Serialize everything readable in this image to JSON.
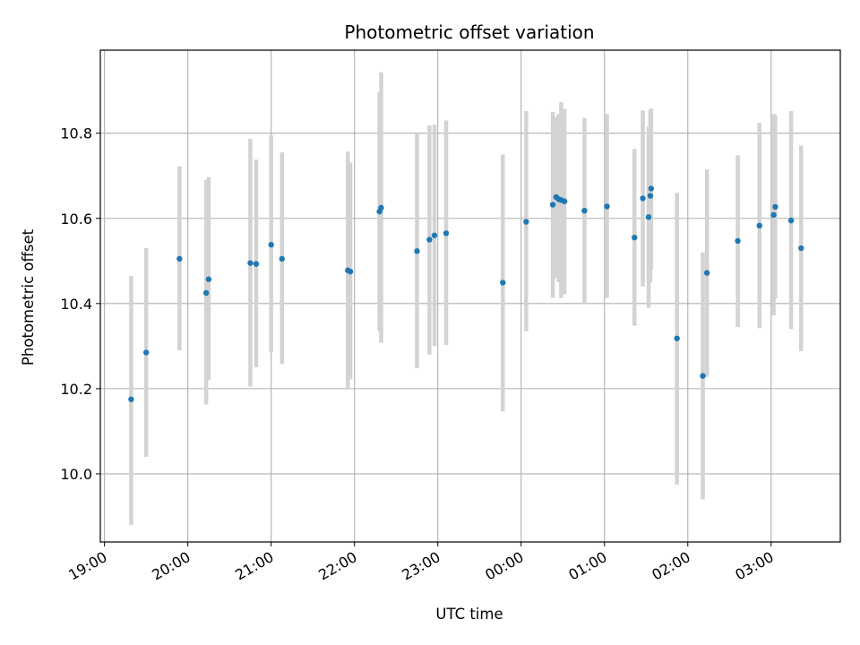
{
  "chart_data": {
    "type": "scatter",
    "title": "Photometric offset variation",
    "xlabel": "UTC time",
    "ylabel": "Photometric offset",
    "x_unit": "hours",
    "xlim": [
      -0.05,
      8.83
    ],
    "ylim": [
      9.84,
      10.995
    ],
    "x_ticks": [
      {
        "value": 0,
        "label": "19:00"
      },
      {
        "value": 1,
        "label": "20:00"
      },
      {
        "value": 2,
        "label": "21:00"
      },
      {
        "value": 3,
        "label": "22:00"
      },
      {
        "value": 4,
        "label": "23:00"
      },
      {
        "value": 5,
        "label": "00:00"
      },
      {
        "value": 6,
        "label": "01:00"
      },
      {
        "value": 7,
        "label": "02:00"
      },
      {
        "value": 8,
        "label": "03:00"
      }
    ],
    "y_ticks": [
      {
        "value": 10.0,
        "label": "10.0"
      },
      {
        "value": 10.2,
        "label": "10.2"
      },
      {
        "value": 10.4,
        "label": "10.4"
      },
      {
        "value": 10.6,
        "label": "10.6"
      },
      {
        "value": 10.8,
        "label": "10.8"
      }
    ],
    "grid": true,
    "point_color": "#1f77b4",
    "errorbar_color": "#d3d3d3",
    "points": [
      {
        "x": 0.32,
        "y": 10.175,
        "lo": 9.88,
        "hi": 10.465
      },
      {
        "x": 0.5,
        "y": 10.285,
        "lo": 10.04,
        "hi": 10.53
      },
      {
        "x": 0.9,
        "y": 10.505,
        "lo": 10.29,
        "hi": 10.722
      },
      {
        "x": 1.22,
        "y": 10.425,
        "lo": 10.163,
        "hi": 10.69
      },
      {
        "x": 1.25,
        "y": 10.457,
        "lo": 10.22,
        "hi": 10.697
      },
      {
        "x": 1.75,
        "y": 10.495,
        "lo": 10.205,
        "hi": 10.787
      },
      {
        "x": 1.82,
        "y": 10.493,
        "lo": 10.25,
        "hi": 10.738
      },
      {
        "x": 2.0,
        "y": 10.538,
        "lo": 10.285,
        "hi": 10.795
      },
      {
        "x": 2.13,
        "y": 10.505,
        "lo": 10.258,
        "hi": 10.755
      },
      {
        "x": 2.92,
        "y": 10.478,
        "lo": 10.2,
        "hi": 10.757
      },
      {
        "x": 2.95,
        "y": 10.475,
        "lo": 10.222,
        "hi": 10.731
      },
      {
        "x": 3.3,
        "y": 10.616,
        "lo": 10.335,
        "hi": 10.897
      },
      {
        "x": 3.32,
        "y": 10.625,
        "lo": 10.308,
        "hi": 10.943
      },
      {
        "x": 3.75,
        "y": 10.523,
        "lo": 10.248,
        "hi": 10.8
      },
      {
        "x": 3.9,
        "y": 10.55,
        "lo": 10.28,
        "hi": 10.818
      },
      {
        "x": 3.96,
        "y": 10.56,
        "lo": 10.3,
        "hi": 10.82
      },
      {
        "x": 4.1,
        "y": 10.565,
        "lo": 10.303,
        "hi": 10.83
      },
      {
        "x": 4.78,
        "y": 10.449,
        "lo": 10.147,
        "hi": 10.75
      },
      {
        "x": 5.06,
        "y": 10.592,
        "lo": 10.335,
        "hi": 10.852
      },
      {
        "x": 5.38,
        "y": 10.632,
        "lo": 10.413,
        "hi": 10.85
      },
      {
        "x": 5.42,
        "y": 10.65,
        "lo": 10.46,
        "hi": 10.838
      },
      {
        "x": 5.45,
        "y": 10.645,
        "lo": 10.45,
        "hi": 10.845
      },
      {
        "x": 5.48,
        "y": 10.643,
        "lo": 10.413,
        "hi": 10.873
      },
      {
        "x": 5.52,
        "y": 10.64,
        "lo": 10.422,
        "hi": 10.857
      },
      {
        "x": 5.76,
        "y": 10.618,
        "lo": 10.4,
        "hi": 10.836
      },
      {
        "x": 6.03,
        "y": 10.628,
        "lo": 10.413,
        "hi": 10.845
      },
      {
        "x": 6.36,
        "y": 10.555,
        "lo": 10.348,
        "hi": 10.763
      },
      {
        "x": 6.46,
        "y": 10.647,
        "lo": 10.44,
        "hi": 10.853
      },
      {
        "x": 6.53,
        "y": 10.603,
        "lo": 10.39,
        "hi": 10.815
      },
      {
        "x": 6.55,
        "y": 10.653,
        "lo": 10.45,
        "hi": 10.855
      },
      {
        "x": 6.56,
        "y": 10.67,
        "lo": 10.48,
        "hi": 10.858
      },
      {
        "x": 6.87,
        "y": 10.318,
        "lo": 9.975,
        "hi": 10.66
      },
      {
        "x": 7.18,
        "y": 10.23,
        "lo": 9.94,
        "hi": 10.52
      },
      {
        "x": 7.23,
        "y": 10.472,
        "lo": 10.228,
        "hi": 10.715
      },
      {
        "x": 7.6,
        "y": 10.547,
        "lo": 10.345,
        "hi": 10.748
      },
      {
        "x": 7.86,
        "y": 10.583,
        "lo": 10.342,
        "hi": 10.824
      },
      {
        "x": 8.03,
        "y": 10.608,
        "lo": 10.372,
        "hi": 10.845
      },
      {
        "x": 8.05,
        "y": 10.627,
        "lo": 10.412,
        "hi": 10.842
      },
      {
        "x": 8.24,
        "y": 10.595,
        "lo": 10.34,
        "hi": 10.852
      },
      {
        "x": 8.36,
        "y": 10.53,
        "lo": 10.288,
        "hi": 10.771
      }
    ]
  }
}
